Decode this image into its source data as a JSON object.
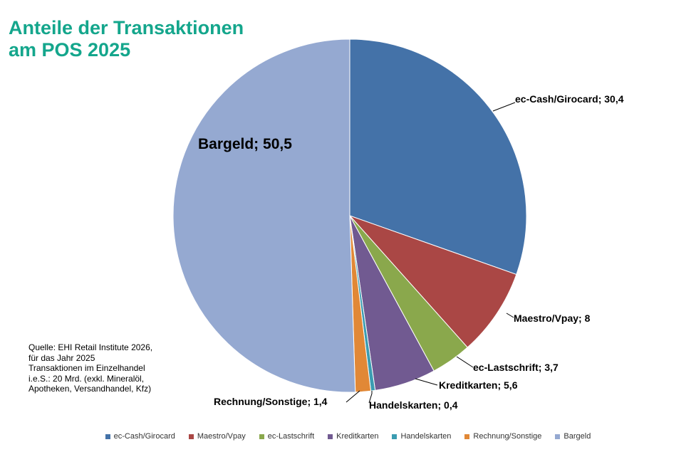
{
  "title_lines": [
    "Anteile der Transaktionen",
    "am POS 2025"
  ],
  "source_lines": [
    "Quelle: EHI Retail Institute 2026,",
    "für das Jahr 2025",
    "Transaktionen im Einzelhandel",
    "i.e.S.: 20 Mrd. (exkl. Mineralöl,",
    "Apotheken, Versandhandel, Kfz)"
  ],
  "chart_data": {
    "type": "pie",
    "title": "Anteile der Transaktionen am POS 2025",
    "legend_position": "bottom",
    "slices": [
      {
        "label": "ec-Cash/Girocard",
        "value": 30.4,
        "data_label": "ec-Cash/Girocard; 30,4",
        "color": "#4472a8"
      },
      {
        "label": "Maestro/Vpay",
        "value": 8,
        "data_label": "Maestro/Vpay; 8",
        "color": "#aa4745"
      },
      {
        "label": "ec-Lastschrift",
        "value": 3.7,
        "data_label": "ec-Lastschrift; 3,7",
        "color": "#8aa84c"
      },
      {
        "label": "Kreditkarten",
        "value": 5.6,
        "data_label": "Kreditkarten; 5,6",
        "color": "#715a91"
      },
      {
        "label": "Handelskarten",
        "value": 0.4,
        "data_label": "Handelskarten; 0,4",
        "color": "#3b9cb1"
      },
      {
        "label": "Rechnung/Sonstige",
        "value": 1.4,
        "data_label": "Rechnung/Sonstige; 1,4",
        "color": "#e18836"
      },
      {
        "label": "Bargeld",
        "value": 50.5,
        "data_label": "Bargeld; 50,5",
        "color": "#95a9d1"
      }
    ]
  }
}
